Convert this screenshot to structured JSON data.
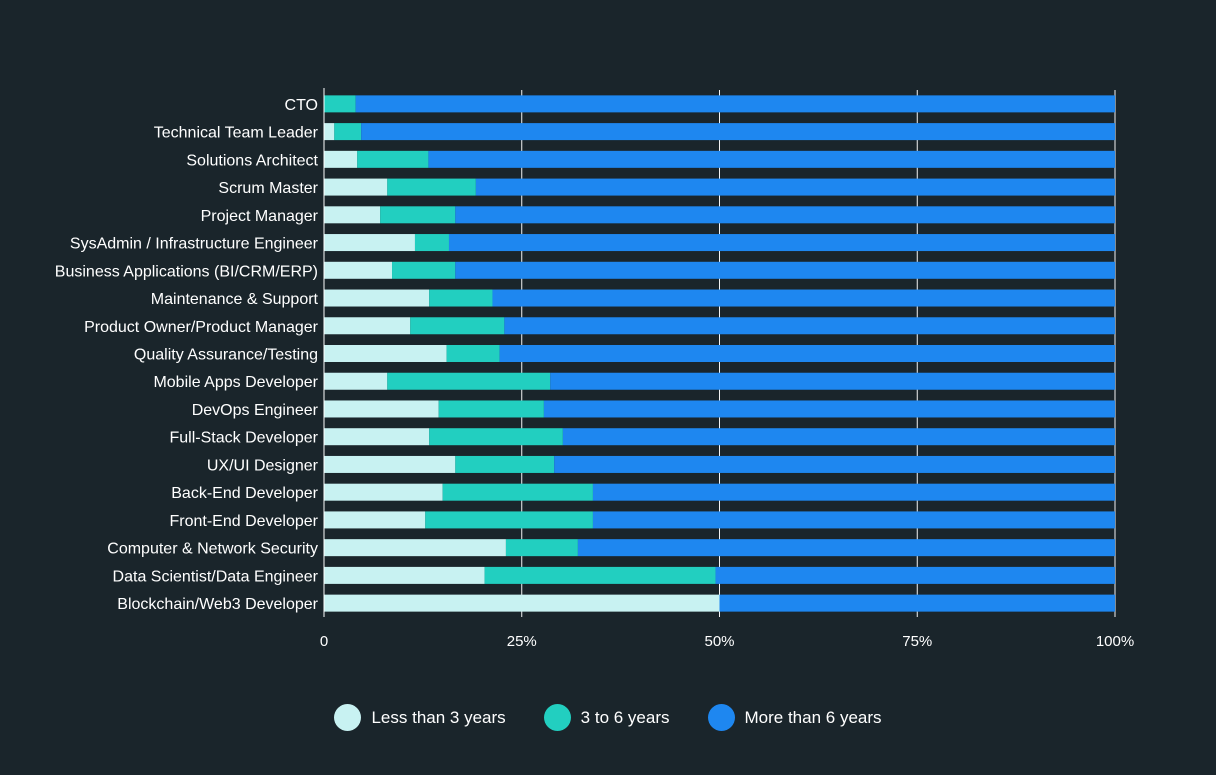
{
  "chart_data": {
    "type": "bar",
    "orientation": "horizontal",
    "stacked": true,
    "categories": [
      "CTO",
      "Technical Team Leader",
      "Solutions Architect",
      "Scrum Master",
      "Project Manager",
      "SysAdmin / Infrastructure Engineer",
      "Business Applications (BI/CRM/ERP)",
      "Maintenance & Support",
      "Product Owner/Product Manager",
      "Quality Assurance/Testing",
      "Mobile Apps Developer",
      "DevOps Engineer",
      "Full-Stack Developer",
      "UX/UI Designer",
      "Back-End Developer",
      "Front-End Developer",
      "Computer & Network Security",
      "Data Scientist/Data Engineer",
      "Blockchain/Web3 Developer"
    ],
    "series": [
      {
        "name": "Less than 3 years",
        "color": "#c8f2f2",
        "values": [
          0,
          1.3,
          4.2,
          8,
          7.1,
          11.5,
          8.6,
          13.3,
          10.9,
          15.5,
          8,
          14.5,
          13.3,
          16.6,
          15,
          12.8,
          23,
          20.3,
          50
        ]
      },
      {
        "name": "3 to 6 years",
        "color": "#22cfc0",
        "values": [
          4,
          3.4,
          9,
          11.2,
          9.5,
          4.3,
          8,
          8,
          11.9,
          6.7,
          20.6,
          13.3,
          16.9,
          12.5,
          19,
          21.2,
          9.1,
          29.2,
          0
        ]
      },
      {
        "name": "More than 6 years",
        "color": "#1e87f0",
        "values": [
          96,
          95.3,
          86.8,
          80.8,
          83.4,
          84.2,
          83.4,
          78.7,
          77.2,
          77.8,
          71.4,
          72.2,
          69.8,
          70.9,
          66,
          66,
          67.9,
          50.5,
          50
        ]
      }
    ],
    "x_ticks": [
      "0",
      "25%",
      "50%",
      "75%",
      "100%"
    ],
    "x_tick_values": [
      0,
      25,
      50,
      75,
      100
    ],
    "xlim": [
      0,
      100
    ],
    "grid": true,
    "legend_position": "bottom"
  }
}
